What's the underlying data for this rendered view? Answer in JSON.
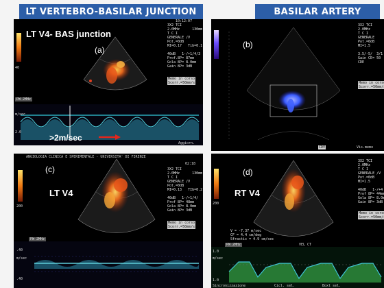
{
  "headers": {
    "left": "LT VERTEBRO-BASILAR JUNCTION",
    "right": "BASILAR ARTERY"
  },
  "colors": {
    "header_bg": "#2c5ea8",
    "velocity_arrow": "#e2261c",
    "flow_red": "#d94a16",
    "flow_yellow": "#f5c040",
    "flow_blue": "#3a5cff",
    "doppler_cyan": "#45b8c8",
    "doppler_green": "#2e8b3c"
  },
  "panels": {
    "a": {
      "title": "LT  V4- BAS junction",
      "letter": "(a)",
      "velocity_note": ">2m/sec",
      "settings": "3X2 TCI\n2.0MHz      130mm\nT C I\nGENERALE /V\nPot.=0dB\nMI=0.17   Tib=0.1\n\n40dB   1-/+1/4/3\nProf.8P= 87mm\nGola 8P= 8.0mm\nGain 8P= 3dB",
      "badge": "Memo in corso\nScorr.=50mm/s",
      "time": "10:12:07",
      "pw": "PW 2MHz",
      "axis_top": "m/sec",
      "axis_bottom": "2.0",
      "scale_low": "40",
      "footer": "Aggiorn."
    },
    "b": {
      "letter": "(b)",
      "settings": "3X2 TCI\n2.0MHz\nT C I\nGENERALE\nPot.=0dB\nMI=1.5\n\n3.5/-5/  3/1\nGain CE= 50\nCDE",
      "badge": "Memo in corso\nScorr.=50mm/s",
      "footer_tag": "CDV",
      "footer_right": "Vis.memo"
    },
    "c": {
      "topbar": "ANGIOLOGIA CLINICA E SPERIMENTALE - UNIVERSITA' DI FIRENZE",
      "time": "02:18",
      "title": "LT V4",
      "letter": "(c)",
      "settings": "3X2 TCI\n2.0MHz      130mm\nT C I\nGENERALE /V\nPot.=0dB\nMI=0.13   TIb=0.2\n\n40dB   1-/+1/4/\nProf 8P= 48mm\nGola 8P= 8.0mm\nGain 8P= 3dB",
      "badge": "Memo in corso\nScorr.=50mm/s",
      "scale_low": "200",
      "pw": "PW 2MHz",
      "axis_top": "m/sec",
      "axis_mid": ".40",
      "axis_bottom": ".40"
    },
    "d": {
      "title": "RT V4",
      "letter": "(d)",
      "settings": "3X2 TCI\n2.0MHz\nT C I\nGENERALE /V\nPot.=0dB\nMI=1.5\n\n40dB   1-/+4\nProf 8P= 44mm\nGola 8P= 8.0m\nGain 8P= 3dB",
      "badge": "Memo in corso\nScorr.=50mm/s",
      "scale_low": "200",
      "measure": "V = -7.37 m/sec\nCF = 4.4 cm/deg\nSfrastic = 4.9 cm/sec",
      "pw": "PW 2MHz",
      "vel_tag": "VEL CT",
      "axis_top": "m/sec",
      "axis_mid": "1.0",
      "axis_bottom": "1.0",
      "footer_left": "Sincronizzazione",
      "footer_mid": "Cicl. sel.",
      "footer_right": "Boxt sel."
    }
  }
}
